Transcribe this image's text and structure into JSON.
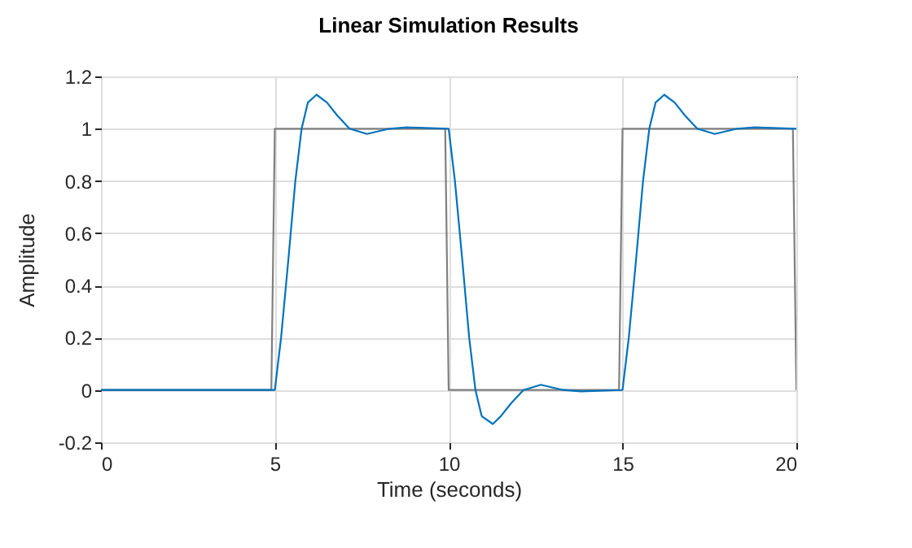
{
  "chart_data": {
    "type": "line",
    "title": "Linear Simulation Results",
    "xlabel": "Time (seconds)",
    "ylabel": "Amplitude",
    "xlim": [
      0,
      20
    ],
    "xticks": [
      0,
      5,
      10,
      15,
      20
    ],
    "ylim": [
      -0.2,
      1.2
    ],
    "yticks": [
      -0.2,
      0,
      0.2,
      0.4,
      0.6,
      0.8,
      1,
      1.2
    ],
    "grid": true,
    "legend": false,
    "marker": "none",
    "line_style": "solid",
    "series": [
      {
        "color": "#808080",
        "x": [
          0,
          4.9,
          5,
          9.9,
          10,
          14.9,
          15,
          19.9,
          20
        ],
        "values": [
          0,
          0,
          1,
          1,
          0,
          0,
          1,
          1,
          0
        ]
      },
      {
        "color": "#0072bd",
        "x": [
          0,
          5,
          5.18,
          5.39,
          5.59,
          5.77,
          5.95,
          6.2,
          6.5,
          6.8,
          7.15,
          7.65,
          8.3,
          8.8,
          10,
          10.18,
          10.39,
          10.59,
          10.77,
          10.95,
          11.27,
          11.5,
          11.8,
          12.15,
          12.65,
          13.3,
          13.8,
          15,
          15.18,
          15.39,
          15.59,
          15.77,
          15.95,
          16.2,
          16.5,
          16.8,
          17.15,
          17.65,
          18.3,
          18.8,
          20
        ],
        "values": [
          0,
          0,
          0.2,
          0.5,
          0.8,
          1,
          1.1,
          1.13,
          1.1,
          1.05,
          1,
          0.98,
          1,
          1.005,
          1,
          0.8,
          0.5,
          0.2,
          0,
          -0.1,
          -0.13,
          -0.1,
          -0.05,
          0,
          0.02,
          0,
          -0.005,
          0,
          0.2,
          0.5,
          0.8,
          1,
          1.1,
          1.13,
          1.1,
          1.05,
          1,
          0.98,
          1,
          1.005,
          1
        ]
      }
    ]
  }
}
